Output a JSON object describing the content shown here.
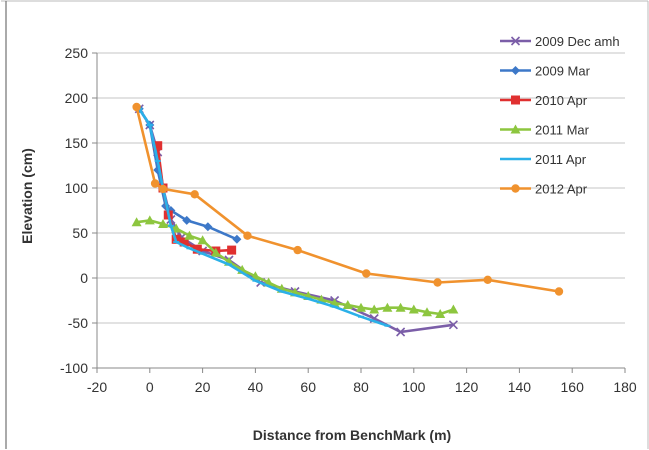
{
  "chart_data": {
    "type": "line",
    "title": "",
    "xlabel": "Distance from BenchMark (m)",
    "ylabel": "Elevation (cm)",
    "xlim": [
      -20,
      180
    ],
    "ylim": [
      -100,
      250
    ],
    "xticks": [
      -20,
      0,
      20,
      40,
      60,
      80,
      100,
      120,
      140,
      160,
      180
    ],
    "yticks": [
      -100,
      -50,
      0,
      50,
      100,
      150,
      200,
      250
    ],
    "grid": "horizontal",
    "legend_position": "right",
    "series": [
      {
        "name": "2009 Dec amh",
        "color": "#7b5ea8",
        "marker": "x",
        "points": [
          [
            -4,
            188
          ],
          [
            0,
            170
          ],
          [
            3,
            140
          ],
          [
            5,
            100
          ],
          [
            8,
            65
          ],
          [
            12,
            45
          ],
          [
            20,
            30
          ],
          [
            30,
            20
          ],
          [
            42,
            -5
          ],
          [
            55,
            -15
          ],
          [
            70,
            -25
          ],
          [
            85,
            -45
          ],
          [
            95,
            -60
          ],
          [
            115,
            -52
          ]
        ]
      },
      {
        "name": "2009 Mar",
        "color": "#3d78c8",
        "marker": "diamond",
        "points": [
          [
            -4,
            188
          ],
          [
            0,
            170
          ],
          [
            3,
            120
          ],
          [
            6,
            80
          ],
          [
            8,
            75
          ],
          [
            14,
            64
          ],
          [
            22,
            57
          ],
          [
            33,
            43
          ]
        ]
      },
      {
        "name": "2010 Apr",
        "color": "#e03030",
        "marker": "square",
        "points": [
          [
            3,
            147
          ],
          [
            5,
            100
          ],
          [
            7,
            70
          ],
          [
            10,
            43
          ],
          [
            13,
            40
          ],
          [
            18,
            32
          ],
          [
            25,
            30
          ],
          [
            31,
            31
          ]
        ]
      },
      {
        "name": "2011 Mar",
        "color": "#8dc63f",
        "marker": "triangle",
        "points": [
          [
            -5,
            62
          ],
          [
            0,
            64
          ],
          [
            5,
            60
          ],
          [
            10,
            55
          ],
          [
            15,
            47
          ],
          [
            20,
            42
          ],
          [
            25,
            28
          ],
          [
            30,
            18
          ],
          [
            35,
            9
          ],
          [
            40,
            2
          ],
          [
            45,
            -5
          ],
          [
            50,
            -12
          ],
          [
            55,
            -16
          ],
          [
            60,
            -20
          ],
          [
            65,
            -24
          ],
          [
            70,
            -28
          ],
          [
            75,
            -30
          ],
          [
            80,
            -33
          ],
          [
            85,
            -35
          ],
          [
            90,
            -33
          ],
          [
            95,
            -33
          ],
          [
            100,
            -35
          ],
          [
            105,
            -38
          ],
          [
            110,
            -40
          ],
          [
            115,
            -35
          ]
        ]
      },
      {
        "name": "2011 Apr",
        "color": "#2bb0e8",
        "marker": "dash",
        "points": [
          [
            -4,
            188
          ],
          [
            0,
            170
          ],
          [
            3,
            130
          ],
          [
            5,
            100
          ],
          [
            8,
            58
          ],
          [
            10,
            40
          ],
          [
            15,
            33
          ],
          [
            20,
            27
          ],
          [
            30,
            15
          ],
          [
            40,
            -3
          ],
          [
            50,
            -15
          ],
          [
            60,
            -23
          ],
          [
            70,
            -32
          ],
          [
            80,
            -43
          ],
          [
            90,
            -53
          ]
        ]
      },
      {
        "name": "2012 Apr",
        "color": "#f0922e",
        "marker": "circle",
        "points": [
          [
            -5,
            190
          ],
          [
            2,
            105
          ],
          [
            5,
            99
          ],
          [
            17,
            93
          ],
          [
            37,
            47
          ],
          [
            56,
            31
          ],
          [
            82,
            5
          ],
          [
            109,
            -5
          ],
          [
            128,
            -2
          ],
          [
            155,
            -15
          ]
        ]
      }
    ]
  }
}
